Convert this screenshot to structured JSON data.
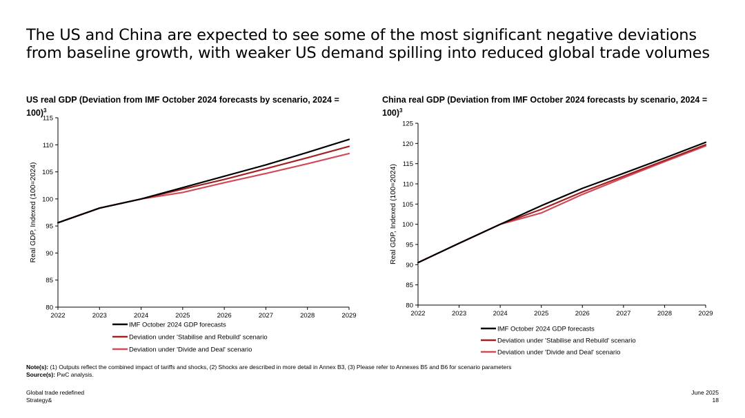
{
  "headline": "The US and China are expected to see some of the most significant negative deviations from baseline growth, with weaker US demand spilling into reduced global trade volumes",
  "colors": {
    "imf": "#000000",
    "stabilise": "#a32020",
    "divide": "#d04a5a",
    "axis": "#000000"
  },
  "chart_data": [
    {
      "type": "line",
      "id": "us",
      "title": "US real GDP (Deviation from IMF October 2024 forecasts by scenario, 2024 = 100)",
      "title_sup": "3",
      "xlabel": "",
      "ylabel": "Real GDP, Indexed (100=2024)",
      "x": [
        2022,
        2023,
        2024,
        2025,
        2026,
        2027,
        2028,
        2029
      ],
      "xticks": [
        "2022",
        "2023",
        "2024",
        "2025",
        "2026",
        "2027",
        "2028",
        "2029"
      ],
      "ylim": [
        80,
        115
      ],
      "yticks": [
        80,
        85,
        90,
        95,
        100,
        105,
        110,
        115
      ],
      "series": [
        {
          "name": "IMF October 2024 GDP forecasts",
          "key": "imf",
          "values": [
            95.6,
            98.3,
            100,
            102.1,
            104.2,
            106.3,
            108.6,
            111.0
          ]
        },
        {
          "name": "Deviation under 'Stabilise and Rebuild' scenario",
          "key": "stabilise",
          "values": [
            95.6,
            98.3,
            100,
            101.8,
            103.6,
            105.6,
            107.6,
            109.7
          ]
        },
        {
          "name": "Deviation under 'Divide and Deal' scenario",
          "key": "divide",
          "values": [
            95.6,
            98.3,
            100,
            101.2,
            103.0,
            104.7,
            106.5,
            108.4
          ]
        }
      ],
      "legend_position": "bottom-left"
    },
    {
      "type": "line",
      "id": "china",
      "title": "China real GDP (Deviation from IMF October 2024 forecasts by scenario, 2024 = 100)",
      "title_sup": "3",
      "xlabel": "",
      "ylabel": "Real GDP, Indexed (100=2024)",
      "x": [
        2022,
        2023,
        2024,
        2025,
        2026,
        2027,
        2028,
        2029
      ],
      "xticks": [
        "2022",
        "2023",
        "2024",
        "2025",
        "2026",
        "2027",
        "2028",
        "2029"
      ],
      "ylim": [
        80,
        125
      ],
      "yticks": [
        80,
        85,
        90,
        95,
        100,
        105,
        110,
        115,
        120,
        125
      ],
      "series": [
        {
          "name": "IMF October 2024 GDP forecasts",
          "key": "imf",
          "values": [
            90.5,
            95.3,
            100,
            104.6,
            108.9,
            112.6,
            116.4,
            120.3
          ]
        },
        {
          "name": "Deviation under 'Stabilise and Rebuild' scenario",
          "key": "stabilise",
          "values": [
            90.5,
            95.3,
            100,
            103.7,
            108.0,
            111.9,
            115.8,
            119.7
          ]
        },
        {
          "name": "Deviation under 'Divide and Deal' scenario",
          "key": "divide",
          "values": [
            90.5,
            95.3,
            100,
            102.8,
            107.4,
            111.5,
            115.5,
            119.4
          ]
        }
      ],
      "legend_position": "bottom-left"
    }
  ],
  "note": {
    "label": "Note(s):",
    "text": " (1) Outputs reflect the combined impact of tariffs and shocks, (2) Shocks are described in more detail in Annex B3, (3) Please refer to Annexes B5 and B6 for scenario parameters",
    "source_label": "Source(s):",
    "source_text": " PwC analysis."
  },
  "footer": {
    "left_line1": "Global trade redefined",
    "left_line2": "Strategy&",
    "right_line1": "June 2025",
    "page_number": "18"
  }
}
